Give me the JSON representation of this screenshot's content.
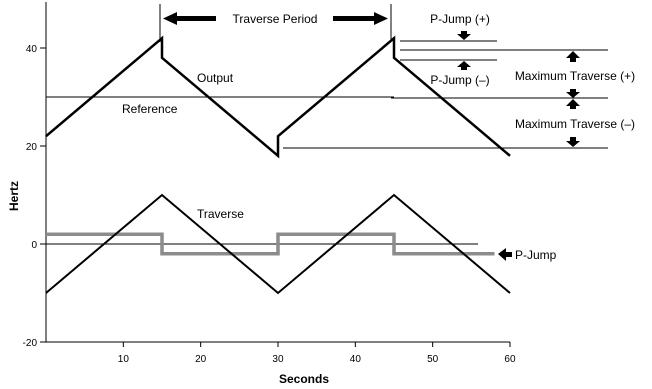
{
  "chart_data": {
    "type": "line",
    "xlabel": "Seconds",
    "ylabel": "Hertz",
    "xlim": [
      0,
      60
    ],
    "ylim": [
      -20,
      50
    ],
    "x_ticks": [
      10,
      20,
      30,
      40,
      50,
      60
    ],
    "y_ticks": [
      -20,
      0,
      20,
      40
    ],
    "series": [
      {
        "name": "Output",
        "color": "#000000",
        "x": [
          0,
          15,
          15,
          30,
          30,
          45,
          45,
          60
        ],
        "y": [
          22,
          42,
          38,
          18,
          22,
          42,
          38,
          18
        ]
      },
      {
        "name": "Reference",
        "color": "#000000",
        "x": [
          0,
          45
        ],
        "y": [
          30,
          30
        ]
      },
      {
        "name": "Traverse",
        "color": "#000000",
        "x": [
          0,
          15,
          30,
          45,
          60
        ],
        "y": [
          -10,
          10,
          -10,
          10,
          -10
        ]
      },
      {
        "name": "P-Jump",
        "color": "#8c8c8c",
        "x": [
          0,
          15,
          15,
          30,
          30,
          45,
          45,
          58
        ],
        "y": [
          2,
          2,
          -2,
          -2,
          2,
          2,
          -2,
          -2
        ]
      }
    ],
    "annotations": {
      "traverse_period": "Traverse Period",
      "p_jump_plus": "P-Jump (+)",
      "p_jump_minus": "P-Jump (–)",
      "max_traverse_plus": "Maximum Traverse (+)",
      "max_traverse_minus": "Maximum Traverse (–)",
      "p_jump": "P-Jump"
    }
  }
}
